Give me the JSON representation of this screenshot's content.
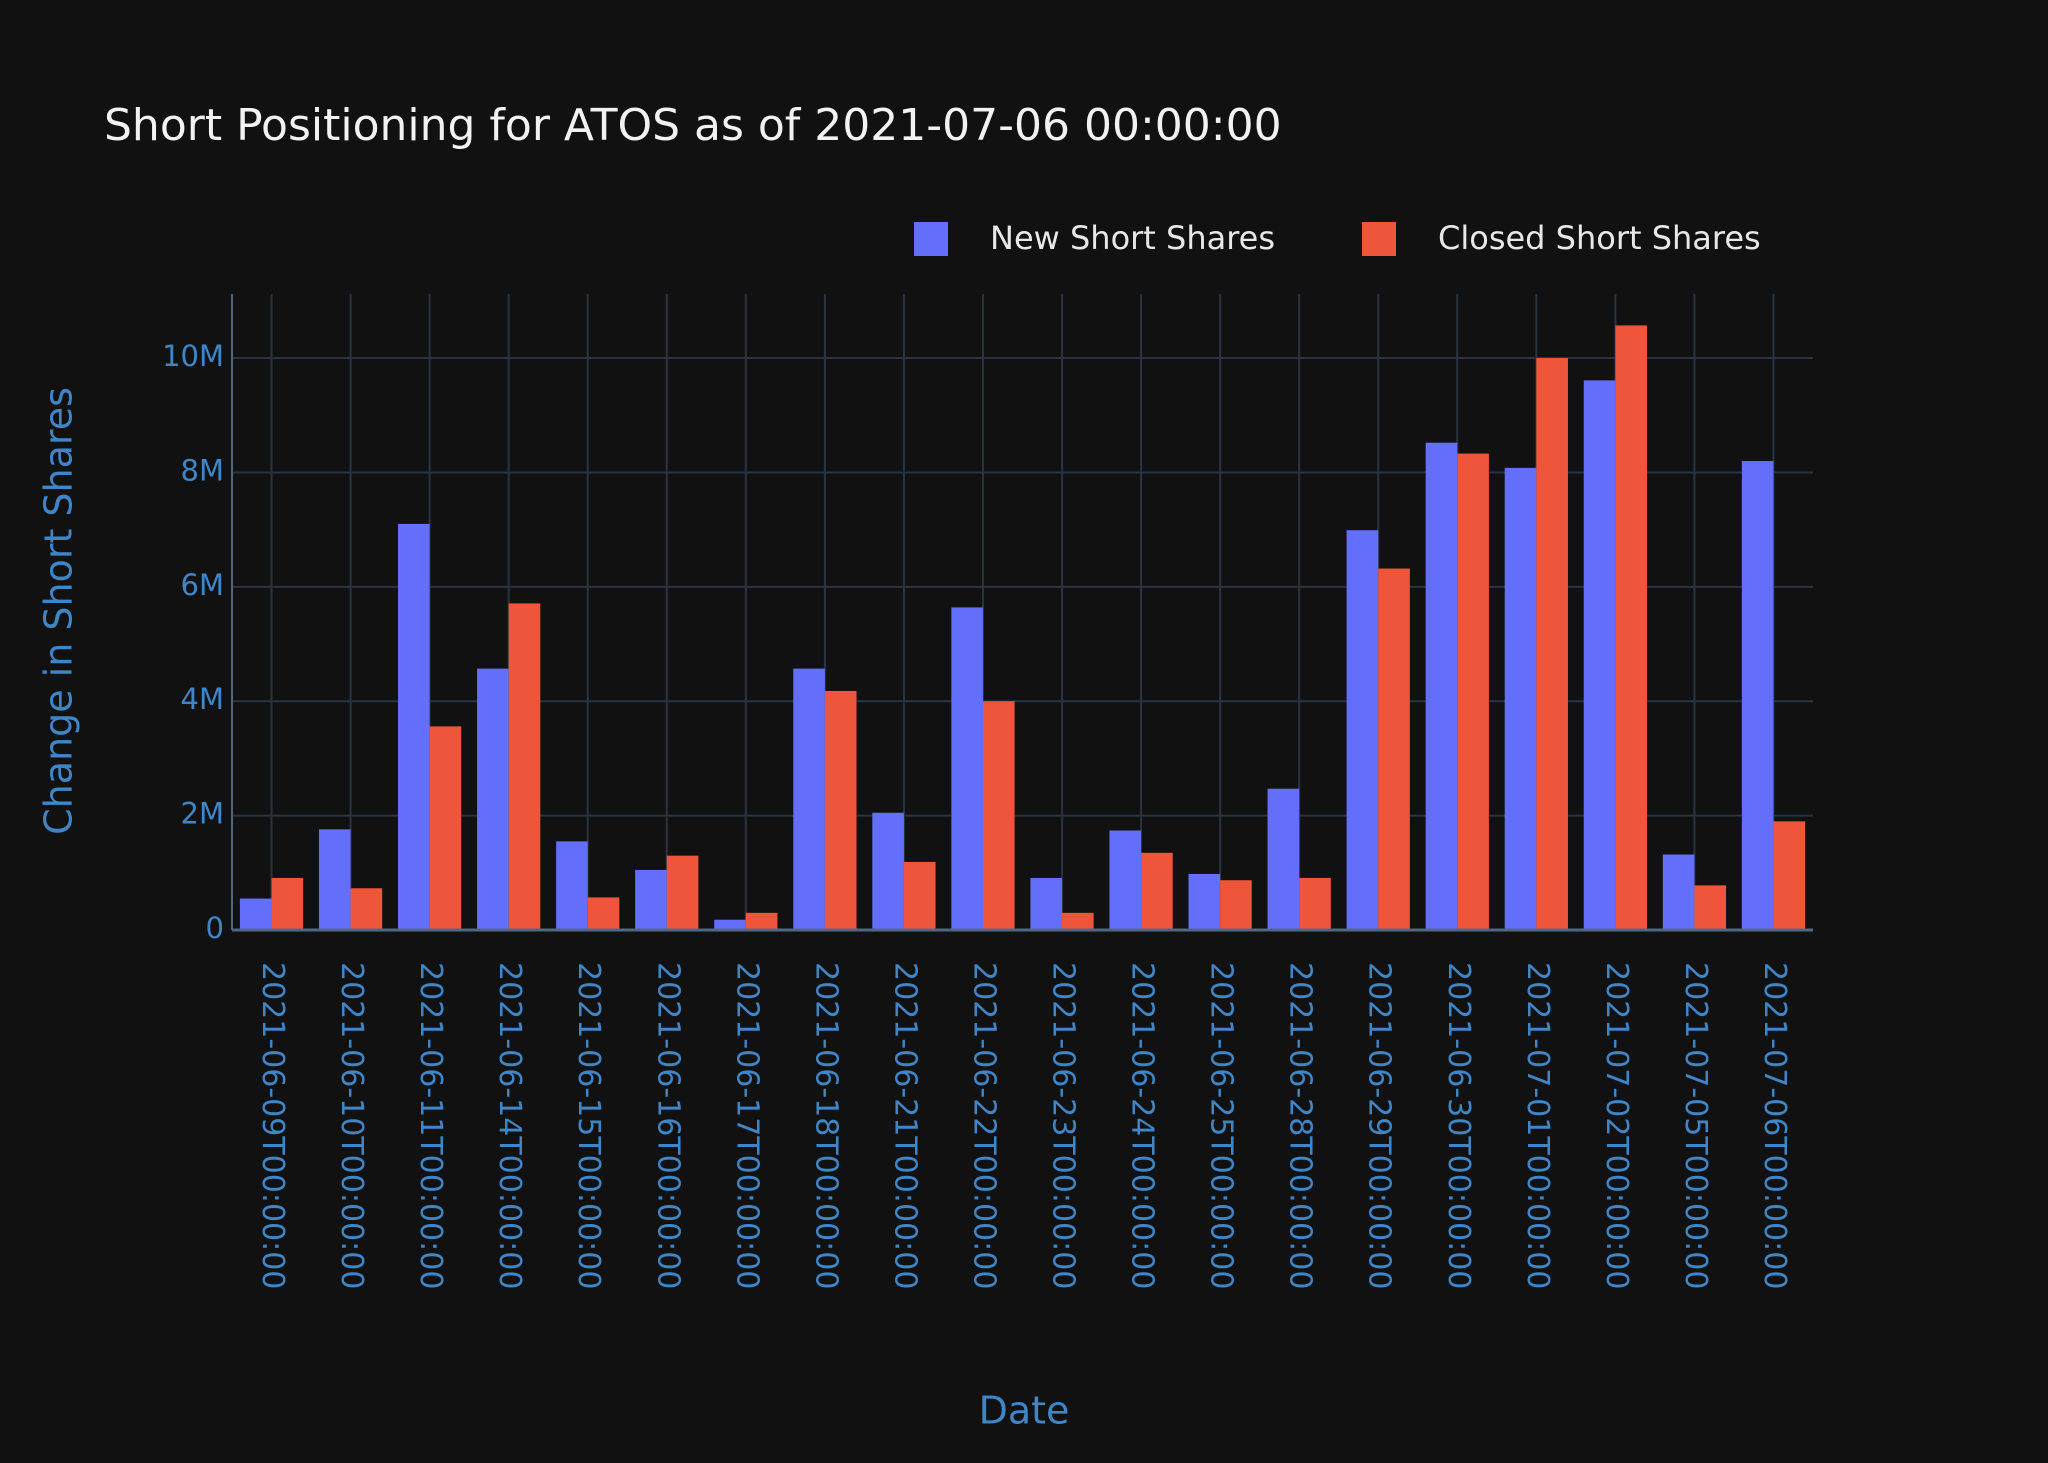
{
  "chart_data": {
    "type": "bar",
    "title": "Short Positioning for ATOS as of 2021-07-06 00:00:00",
    "x_label": "Date",
    "y_label": "Change in Short Shares",
    "categories": [
      "2021-06-09T00:00:00",
      "2021-06-10T00:00:00",
      "2021-06-11T00:00:00",
      "2021-06-14T00:00:00",
      "2021-06-15T00:00:00",
      "2021-06-16T00:00:00",
      "2021-06-17T00:00:00",
      "2021-06-18T00:00:00",
      "2021-06-21T00:00:00",
      "2021-06-22T00:00:00",
      "2021-06-23T00:00:00",
      "2021-06-24T00:00:00",
      "2021-06-25T00:00:00",
      "2021-06-28T00:00:00",
      "2021-06-29T00:00:00",
      "2021-06-30T00:00:00",
      "2021-07-01T00:00:00",
      "2021-07-02T00:00:00",
      "2021-07-05T00:00:00",
      "2021-07-06T00:00:00"
    ],
    "series": [
      {
        "name": "New Short Shares",
        "color": "#636efa",
        "values": [
          550000,
          1760000,
          7100000,
          4570000,
          1550000,
          1050000,
          180000,
          4570000,
          2050000,
          5640000,
          910000,
          1740000,
          980000,
          2470000,
          6990000,
          8520000,
          8080000,
          9610000,
          1320000,
          8200000
        ]
      },
      {
        "name": "Closed Short Shares",
        "color": "#ef553b",
        "values": [
          910000,
          730000,
          3560000,
          5710000,
          570000,
          1300000,
          300000,
          4180000,
          1190000,
          4000000,
          300000,
          1350000,
          870000,
          910000,
          6320000,
          8330000,
          10000000,
          10570000,
          780000,
          1900000
        ]
      }
    ],
    "ylim": [
      0,
      11120000
    ],
    "yticks": [
      0,
      {
        "value": 2000000,
        "label": "2M"
      },
      {
        "value": 4000000,
        "label": "4M"
      },
      {
        "value": 6000000,
        "label": "6M"
      },
      {
        "value": 8000000,
        "label": "8M"
      },
      {
        "value": 10000000,
        "label": "10M"
      }
    ],
    "grid": true
  }
}
